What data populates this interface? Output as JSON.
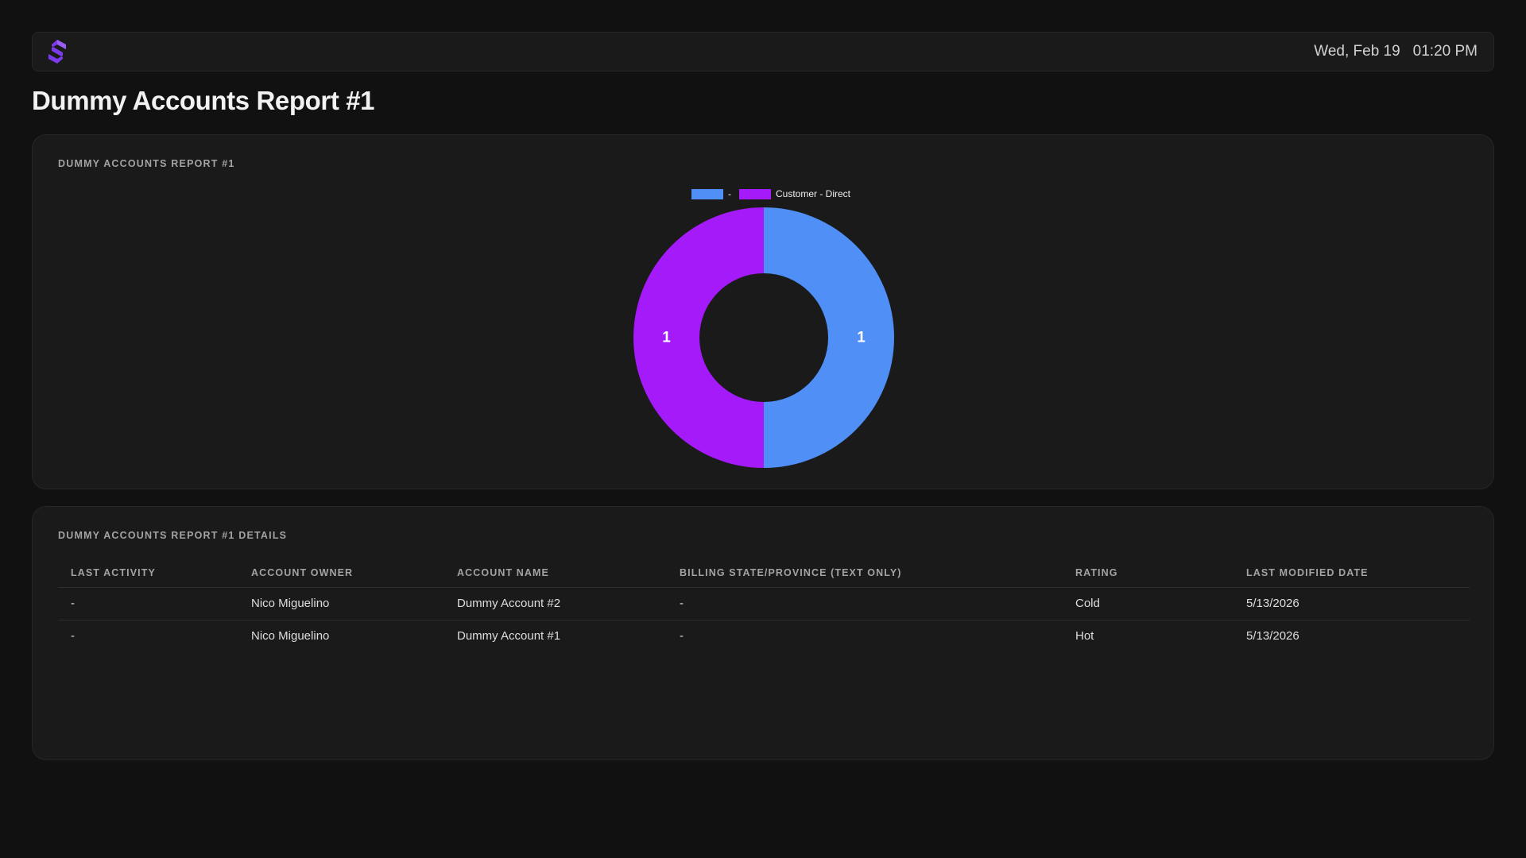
{
  "header": {
    "date": "Wed, Feb 19",
    "time": "01:20 PM"
  },
  "page_title": "Dummy Accounts Report #1",
  "chart_card": {
    "label": "DUMMY ACCOUNTS REPORT #1"
  },
  "chart_data": {
    "type": "pie",
    "variant": "donut",
    "categories": [
      "-",
      "Customer - Direct"
    ],
    "values": [
      1,
      1
    ],
    "colors": [
      "#4f8ff6",
      "#a51af8"
    ],
    "legend_position": "top",
    "data_labels": [
      "1",
      "1"
    ]
  },
  "table_card": {
    "label": "DUMMY ACCOUNTS REPORT #1 DETAILS",
    "columns": [
      "LAST ACTIVITY",
      "ACCOUNT OWNER",
      "ACCOUNT NAME",
      "BILLING STATE/PROVINCE (TEXT ONLY)",
      "RATING",
      "LAST MODIFIED DATE"
    ],
    "rows": [
      [
        "-",
        "Nico Miguelino",
        "Dummy Account #2",
        "-",
        "Cold",
        "5/13/2026"
      ],
      [
        "-",
        "Nico Miguelino",
        "Dummy Account #1",
        "-",
        "Hot",
        "5/13/2026"
      ]
    ]
  },
  "icons": {
    "logo": "brand-logo-icon"
  }
}
